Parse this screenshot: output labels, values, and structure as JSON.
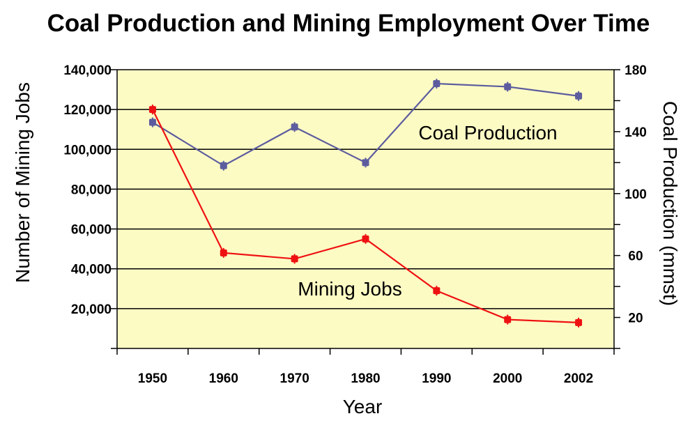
{
  "chart_data": {
    "type": "line",
    "title": "Coal Production and Mining Employment Over Time",
    "xlabel": "Year",
    "ylabel_left": "Number of Mining Jobs",
    "ylabel_right": "Coal Production (mmst)",
    "categories": [
      "1950",
      "1960",
      "1970",
      "1980",
      "1990",
      "2000",
      "2002"
    ],
    "y_left": {
      "lim": [
        0,
        140000
      ],
      "major_ticks": [
        20000,
        40000,
        60000,
        80000,
        100000,
        120000,
        140000
      ],
      "tick_labels": [
        "20,000",
        "40,000",
        "60,000",
        "80,000",
        "100,000",
        "120,000",
        "140,000"
      ]
    },
    "y_right": {
      "lim": [
        0,
        180
      ],
      "major_ticks": [
        20,
        60,
        100,
        140,
        180
      ],
      "tick_labels": [
        "20",
        "60",
        "100",
        "140",
        "180"
      ],
      "minor_ticks": [
        40,
        80,
        120,
        160
      ]
    },
    "grid": true,
    "background_color": "#FDFBC4",
    "series": [
      {
        "name": "Coal Production",
        "axis": "right",
        "color": "#5C5C9E",
        "values": [
          146,
          118,
          143,
          120,
          171,
          169,
          163
        ]
      },
      {
        "name": "Mining Jobs",
        "axis": "left",
        "color": "#EE1111",
        "values": [
          120000,
          48000,
          45000,
          55000,
          29000,
          14500,
          13000
        ]
      }
    ]
  }
}
